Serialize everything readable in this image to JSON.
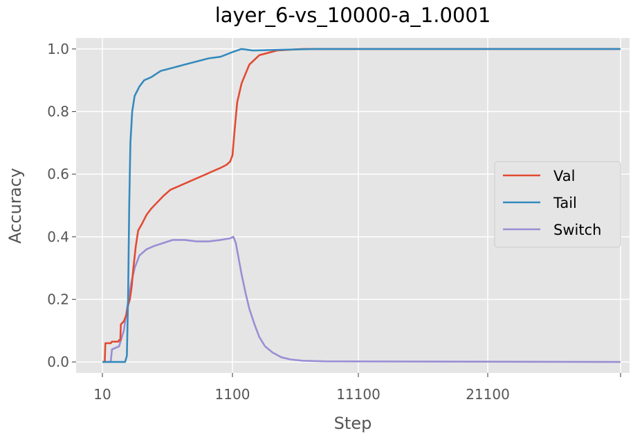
{
  "chart_data": {
    "type": "line",
    "title": "layer_6-vs_10000-a_1.0001",
    "xlabel": "Step",
    "ylabel": "Accuracy",
    "xticks": [
      {
        "value": 10,
        "label": "10"
      },
      {
        "value": 1100,
        "label": "1100"
      },
      {
        "value": 11100,
        "label": "11100"
      },
      {
        "value": 21100,
        "label": "21100"
      }
    ],
    "yticks": [
      {
        "value": 0.0,
        "label": "0.0"
      },
      {
        "value": 0.2,
        "label": "0.2"
      },
      {
        "value": 0.4,
        "label": "0.4"
      },
      {
        "value": 0.6,
        "label": "0.6"
      },
      {
        "value": 0.8,
        "label": "0.8"
      },
      {
        "value": 1.0,
        "label": "1.0"
      }
    ],
    "ylim": [
      -0.035,
      1.035
    ],
    "grid": true,
    "legend_position": "center-right",
    "series": [
      {
        "name": "Val",
        "color": "#E24A33",
        "points": [
          [
            10,
            0.0
          ],
          [
            30,
            0.0
          ],
          [
            35,
            0.06
          ],
          [
            80,
            0.06
          ],
          [
            90,
            0.065
          ],
          [
            145,
            0.065
          ],
          [
            150,
            0.07
          ],
          [
            160,
            0.07
          ],
          [
            165,
            0.12
          ],
          [
            190,
            0.13
          ],
          [
            210,
            0.15
          ],
          [
            225,
            0.18
          ],
          [
            240,
            0.2
          ],
          [
            255,
            0.24
          ],
          [
            270,
            0.3
          ],
          [
            290,
            0.37
          ],
          [
            310,
            0.42
          ],
          [
            340,
            0.44
          ],
          [
            380,
            0.47
          ],
          [
            420,
            0.49
          ],
          [
            470,
            0.51
          ],
          [
            520,
            0.53
          ],
          [
            580,
            0.55
          ],
          [
            640,
            0.56
          ],
          [
            700,
            0.57
          ],
          [
            760,
            0.58
          ],
          [
            820,
            0.59
          ],
          [
            880,
            0.6
          ],
          [
            940,
            0.61
          ],
          [
            1000,
            0.62
          ],
          [
            1050,
            0.63
          ],
          [
            1080,
            0.64
          ],
          [
            1100,
            0.66
          ],
          [
            1150,
            0.75
          ],
          [
            1200,
            0.83
          ],
          [
            1300,
            0.89
          ],
          [
            1500,
            0.95
          ],
          [
            1800,
            0.98
          ],
          [
            2500,
            0.995
          ],
          [
            4000,
            1.0
          ],
          [
            26000,
            1.0
          ]
        ]
      },
      {
        "name": "Tail",
        "color": "#348ABD",
        "points": [
          [
            10,
            0.0
          ],
          [
            200,
            0.0
          ],
          [
            215,
            0.02
          ],
          [
            225,
            0.2
          ],
          [
            235,
            0.5
          ],
          [
            245,
            0.7
          ],
          [
            260,
            0.8
          ],
          [
            280,
            0.85
          ],
          [
            320,
            0.88
          ],
          [
            360,
            0.9
          ],
          [
            420,
            0.91
          ],
          [
            500,
            0.93
          ],
          [
            600,
            0.94
          ],
          [
            700,
            0.95
          ],
          [
            800,
            0.96
          ],
          [
            900,
            0.97
          ],
          [
            1000,
            0.975
          ],
          [
            1100,
            0.99
          ],
          [
            1300,
            1.0
          ],
          [
            1600,
            0.995
          ],
          [
            2500,
            0.997
          ],
          [
            5000,
            1.0
          ],
          [
            26000,
            1.0
          ]
        ]
      },
      {
        "name": "Switch",
        "color": "#988ED5",
        "points": [
          [
            10,
            0.0
          ],
          [
            80,
            0.0
          ],
          [
            90,
            0.04
          ],
          [
            150,
            0.05
          ],
          [
            190,
            0.1
          ],
          [
            220,
            0.18
          ],
          [
            250,
            0.25
          ],
          [
            280,
            0.3
          ],
          [
            320,
            0.34
          ],
          [
            380,
            0.36
          ],
          [
            440,
            0.37
          ],
          [
            520,
            0.38
          ],
          [
            600,
            0.39
          ],
          [
            700,
            0.39
          ],
          [
            800,
            0.385
          ],
          [
            900,
            0.385
          ],
          [
            1000,
            0.39
          ],
          [
            1080,
            0.395
          ],
          [
            1120,
            0.4
          ],
          [
            1170,
            0.38
          ],
          [
            1220,
            0.34
          ],
          [
            1300,
            0.28
          ],
          [
            1400,
            0.22
          ],
          [
            1500,
            0.17
          ],
          [
            1650,
            0.12
          ],
          [
            1800,
            0.08
          ],
          [
            2000,
            0.05
          ],
          [
            2300,
            0.03
          ],
          [
            2700,
            0.015
          ],
          [
            3200,
            0.008
          ],
          [
            4000,
            0.004
          ],
          [
            6000,
            0.002
          ],
          [
            26000,
            0.0
          ]
        ]
      }
    ]
  }
}
